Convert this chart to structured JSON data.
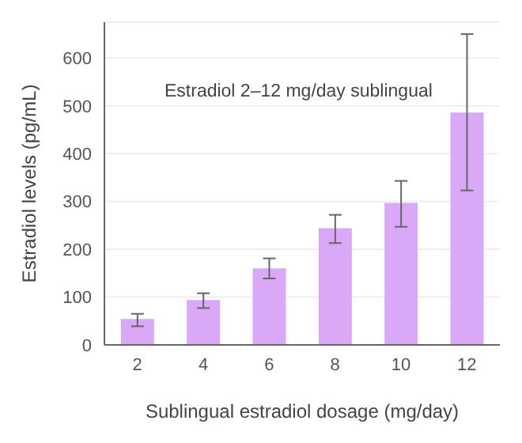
{
  "chart_data": {
    "type": "bar",
    "xlabel": "Sublingual estradiol dosage (mg/day)",
    "ylabel": "Estradiol levels (pg/mL)",
    "annotations": [
      "Estradiol 2–12 mg/day sublingual"
    ],
    "categories": [
      "2",
      "4",
      "6",
      "8",
      "10",
      "12"
    ],
    "values": [
      54,
      94,
      160,
      244,
      297,
      486
    ],
    "errors": [
      [
        39,
        65
      ],
      [
        77,
        108
      ],
      [
        139,
        181
      ],
      [
        213,
        272
      ],
      [
        247,
        343
      ],
      [
        323,
        650
      ]
    ],
    "color": "#d9a8f7",
    "ylim": [
      0,
      675
    ],
    "yticks": [
      0,
      100,
      200,
      300,
      400,
      500,
      600
    ],
    "grid": "y"
  }
}
